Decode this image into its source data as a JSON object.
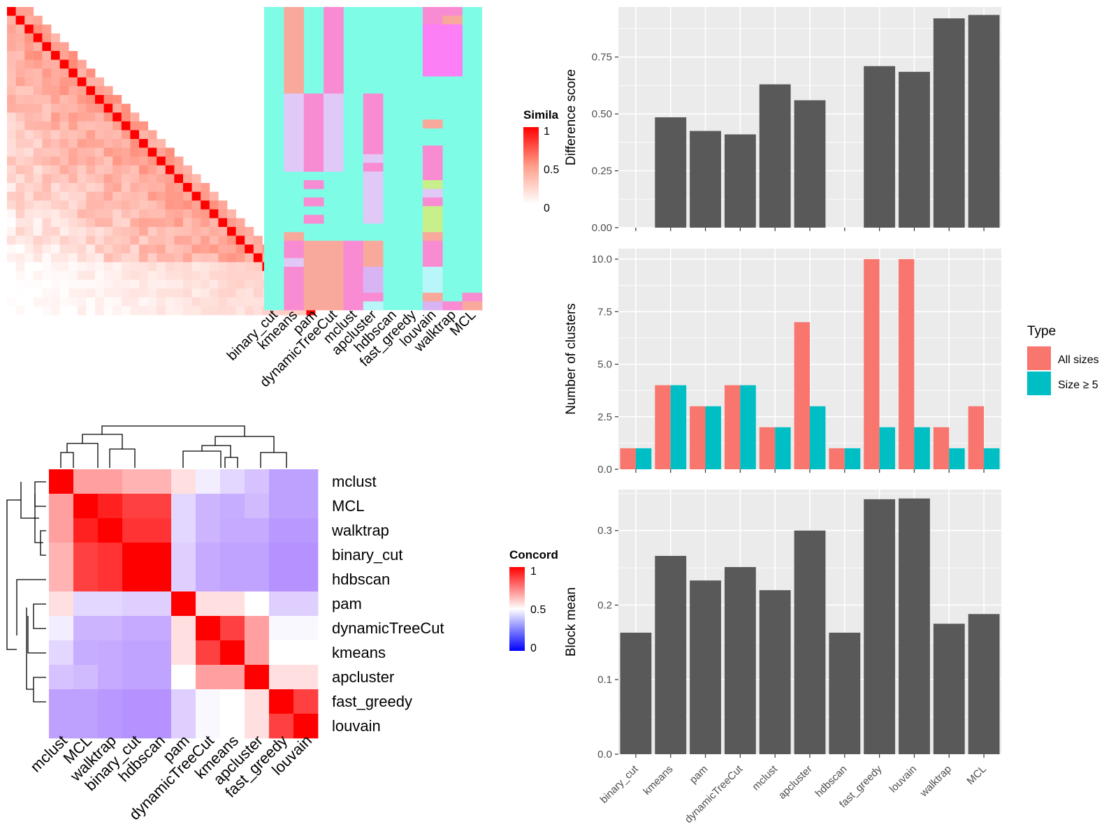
{
  "colors": {
    "panel_bg": "#ebebeb",
    "grid": "#ffffff",
    "bar_dark": "#595959",
    "type_all": "#f8766d",
    "type_size5": "#00bfc4",
    "sim_high": "#ff0000",
    "sim_low": "#ffffff",
    "conc_high": "#ff0000",
    "conc_mid": "#ffffff",
    "conc_low": "#0000ff",
    "cluster_bg": "#7ffce6"
  },
  "top_left": {
    "similarity_legend": {
      "title": "Simila",
      "ticks": [
        "1",
        "0.5",
        "0"
      ]
    },
    "cluster_columns": [
      "binary_cut",
      "kmeans",
      "pam",
      "dynamicTreeCut",
      "mclust",
      "apcluster",
      "hdbscan",
      "fast_greedy",
      "louvain",
      "walktrap",
      "MCL"
    ],
    "n_rows": 35
  },
  "bottom_left": {
    "legend": {
      "title": "Concord",
      "ticks": [
        "1",
        "0.5",
        "0"
      ]
    },
    "row_labels": [
      "mclust",
      "MCL",
      "walktrap",
      "binary_cut",
      "hdbscan",
      "pam",
      "dynamicTreeCut",
      "kmeans",
      "apcluster",
      "fast_greedy",
      "louvain"
    ],
    "col_labels": [
      "mclust",
      "MCL",
      "walktrap",
      "binary_cut",
      "hdbscan",
      "pam",
      "dynamicTreeCut",
      "kmeans",
      "apcluster",
      "fast_greedy",
      "louvain"
    ],
    "matrix": [
      [
        1.0,
        0.75,
        0.75,
        0.72,
        0.72,
        0.65,
        0.55,
        0.48,
        0.42,
        0.32,
        0.32
      ],
      [
        0.75,
        1.0,
        0.95,
        0.9,
        0.9,
        0.48,
        0.38,
        0.36,
        0.4,
        0.32,
        0.32
      ],
      [
        0.75,
        0.95,
        1.0,
        0.92,
        0.92,
        0.48,
        0.38,
        0.35,
        0.35,
        0.3,
        0.3
      ],
      [
        0.72,
        0.9,
        0.92,
        1.0,
        1.0,
        0.46,
        0.35,
        0.33,
        0.33,
        0.28,
        0.28
      ],
      [
        0.72,
        0.9,
        0.92,
        1.0,
        1.0,
        0.46,
        0.35,
        0.33,
        0.33,
        0.28,
        0.28
      ],
      [
        0.65,
        0.48,
        0.48,
        0.46,
        0.46,
        1.0,
        0.65,
        0.65,
        0.6,
        0.46,
        0.46
      ],
      [
        0.55,
        0.38,
        0.38,
        0.35,
        0.35,
        0.65,
        1.0,
        0.9,
        0.75,
        0.58,
        0.58
      ],
      [
        0.48,
        0.36,
        0.35,
        0.33,
        0.33,
        0.65,
        0.9,
        1.0,
        0.75,
        0.6,
        0.6
      ],
      [
        0.42,
        0.4,
        0.35,
        0.33,
        0.33,
        0.6,
        0.75,
        0.75,
        1.0,
        0.65,
        0.65
      ],
      [
        0.32,
        0.32,
        0.3,
        0.28,
        0.28,
        0.46,
        0.58,
        0.6,
        0.65,
        1.0,
        0.9
      ],
      [
        0.32,
        0.32,
        0.3,
        0.28,
        0.28,
        0.46,
        0.58,
        0.6,
        0.65,
        0.9,
        1.0
      ]
    ]
  },
  "chart_data": [
    {
      "type": "bar",
      "categories": [
        "binary_cut",
        "kmeans",
        "pam",
        "dynamicTreeCut",
        "mclust",
        "apcluster",
        "hdbscan",
        "fast_greedy",
        "louvain",
        "walktrap",
        "MCL"
      ],
      "values": [
        0,
        0.485,
        0.425,
        0.41,
        0.63,
        0.56,
        0,
        0.71,
        0.685,
        0.92,
        0.935
      ],
      "ylabel": "Difference score",
      "ylim": [
        0,
        0.97
      ],
      "yticks": [
        "0.00",
        "0.25",
        "0.50",
        "0.75"
      ],
      "grid": true
    },
    {
      "type": "bar",
      "categories": [
        "binary_cut",
        "kmeans",
        "pam",
        "dynamicTreeCut",
        "mclust",
        "apcluster",
        "hdbscan",
        "fast_greedy",
        "louvain",
        "walktrap",
        "MCL"
      ],
      "series": [
        {
          "name": "All sizes",
          "values": [
            1,
            4,
            3,
            4,
            2,
            7,
            1,
            10,
            10,
            2,
            3
          ]
        },
        {
          "name": "Size ≥ 5",
          "values": [
            1,
            4,
            3,
            4,
            2,
            3,
            1,
            2,
            2,
            1,
            1
          ]
        }
      ],
      "ylabel": "Number of clusters",
      "ylim": [
        0,
        10.5
      ],
      "yticks": [
        "0.0",
        "2.5",
        "5.0",
        "7.5",
        "10.0"
      ],
      "legend": {
        "title": "Type",
        "position": "right"
      },
      "grid": true
    },
    {
      "type": "bar",
      "categories": [
        "binary_cut",
        "kmeans",
        "pam",
        "dynamicTreeCut",
        "mclust",
        "apcluster",
        "hdbscan",
        "fast_greedy",
        "louvain",
        "walktrap",
        "MCL"
      ],
      "values": [
        0.163,
        0.266,
        0.233,
        0.251,
        0.22,
        0.3,
        0.163,
        0.342,
        0.343,
        0.175,
        0.188
      ],
      "ylabel": "Block mean",
      "ylim": [
        0,
        0.355
      ],
      "yticks": [
        "0.0",
        "0.1",
        "0.2",
        "0.3"
      ],
      "grid": true
    }
  ]
}
